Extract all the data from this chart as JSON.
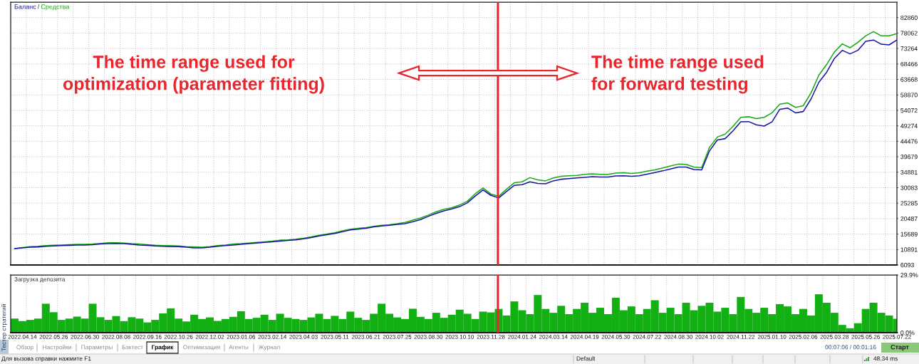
{
  "chart_data": [
    {
      "type": "line",
      "categories": [
        null,
        "2022.04.14",
        null,
        null,
        null,
        "2022.05.26",
        null,
        null,
        null,
        "2022.06.30",
        null,
        null,
        null,
        "2022.08.08",
        null,
        null,
        null,
        "2022.09.16",
        null,
        null,
        null,
        "2022.10.26",
        null,
        null,
        null,
        "2022.12.02",
        null,
        null,
        null,
        "2023.01.06",
        null,
        null,
        null,
        "2023.02.14",
        null,
        null,
        null,
        "2023.04.03",
        null,
        null,
        null,
        "2023.05.11",
        null,
        null,
        null,
        "2023.06.21",
        null,
        null,
        null,
        "2023.07.25",
        null,
        null,
        null,
        "2023.08.30",
        null,
        null,
        null,
        "2023.10.10",
        null,
        null,
        null,
        "2023.11.28",
        null,
        null,
        null,
        "2024.01.24",
        null,
        null,
        null,
        "2024.03.14",
        null,
        null,
        null,
        "2024.04.19",
        null,
        null,
        null,
        "2024.05.30",
        null,
        null,
        null,
        "2024.07.22",
        null,
        null,
        null,
        "2024.08.30",
        null,
        null,
        null,
        "2024.10.02",
        null,
        null,
        null,
        "2024.11.22",
        null,
        null,
        null,
        "2025.01.10",
        null,
        null,
        null,
        "2025.02.06",
        null,
        null,
        null,
        "2025.03.28",
        null,
        null,
        null,
        "2025.05.26",
        null,
        null,
        null,
        "2025.07.22"
      ],
      "series": [
        {
          "name": "Баланс",
          "color": "#1414a0",
          "values": [
            11200,
            11400,
            11600,
            11700,
            11900,
            12000,
            12100,
            12200,
            12300,
            12300,
            12400,
            12600,
            12700,
            12800,
            12700,
            12500,
            12300,
            12200,
            12000,
            11900,
            11800,
            11800,
            11600,
            11400,
            11400,
            11600,
            11900,
            12100,
            12300,
            12500,
            12700,
            12900,
            13100,
            13300,
            13500,
            13700,
            13900,
            14200,
            14600,
            15100,
            15500,
            15900,
            16400,
            17000,
            17200,
            17500,
            17900,
            18200,
            18400,
            18700,
            18900,
            19500,
            20200,
            21200,
            22100,
            22900,
            23500,
            24200,
            25400,
            27500,
            29400,
            27700,
            26900,
            28900,
            30800,
            31000,
            31900,
            31400,
            31300,
            32200,
            32700,
            32900,
            33100,
            33300,
            33500,
            33400,
            33400,
            33700,
            33800,
            33600,
            33800,
            34300,
            34800,
            35300,
            35900,
            36500,
            36500,
            35700,
            35600,
            41500,
            44900,
            45300,
            47700,
            50500,
            50600,
            49600,
            49200,
            50500,
            54400,
            54800,
            53300,
            53700,
            57600,
            62800,
            65900,
            70200,
            72700,
            71600,
            72700,
            75500,
            75900,
            74600,
            74400,
            75900
          ]
        },
        {
          "name": "Средства",
          "color": "#18a818",
          "values": [
            11200,
            11500,
            11800,
            11900,
            12100,
            12200,
            12300,
            12400,
            12500,
            12500,
            12600,
            12800,
            13000,
            13000,
            12900,
            12700,
            12600,
            12400,
            12200,
            12100,
            12100,
            12000,
            11800,
            11700,
            11600,
            11800,
            12100,
            12300,
            12600,
            12700,
            12900,
            13100,
            13300,
            13500,
            13800,
            13900,
            14100,
            14400,
            14800,
            15300,
            15700,
            16100,
            16700,
            17200,
            17500,
            17700,
            18100,
            18400,
            18600,
            18900,
            19300,
            20000,
            20700,
            21600,
            22600,
            23400,
            23900,
            24700,
            25900,
            28200,
            30000,
            28100,
            27400,
            29600,
            31600,
            31900,
            33200,
            32500,
            32200,
            33100,
            33600,
            33800,
            33900,
            34200,
            34400,
            34200,
            34200,
            34600,
            34700,
            34500,
            34700,
            35200,
            35600,
            36200,
            36800,
            37400,
            37300,
            36500,
            36300,
            42600,
            45800,
            46700,
            49100,
            51900,
            52100,
            51500,
            51900,
            53300,
            56000,
            56400,
            55000,
            55500,
            59500,
            65000,
            68300,
            72200,
            74700,
            73500,
            75200,
            77200,
            78500,
            77200,
            77200,
            77900
          ]
        }
      ],
      "ylim": [
        6093,
        87658
      ],
      "yticks": [
        6093,
        10891,
        15689,
        20487,
        25285,
        30083,
        34881,
        39679,
        44476,
        49274,
        54072,
        58870,
        63668,
        68466,
        73264,
        78062,
        82860
      ],
      "tick_labels": "y",
      "grid": true,
      "legend": "top left",
      "annotations": [
        "The time range used for\noptimization (parameter fitting)",
        "The time range used\nfor forward testing",
        "/"
      ]
    },
    {
      "type": "bar",
      "title": "Загрузка депозита",
      "categories": [
        null,
        "2022.04.14",
        null,
        null,
        null,
        "2022.05.26",
        null,
        null,
        null,
        "2022.06.30",
        null,
        null,
        null,
        "2022.08.08",
        null,
        null,
        null,
        "2022.09.16",
        null,
        null,
        null,
        "2022.10.26",
        null,
        null,
        null,
        "2022.12.02",
        null,
        null,
        null,
        "2023.01.06",
        null,
        null,
        null,
        "2023.02.14",
        null,
        null,
        null,
        "2023.04.03",
        null,
        null,
        null,
        "2023.05.11",
        null,
        null,
        null,
        "2023.06.21",
        null,
        null,
        null,
        "2023.07.25",
        null,
        null,
        null,
        "2023.08.30",
        null,
        null,
        null,
        "2023.10.10",
        null,
        null,
        null,
        "2023.11.28",
        null,
        null,
        null,
        "2024.01.24",
        null,
        null,
        null,
        "2024.03.14",
        null,
        null,
        null,
        "2024.04.19",
        null,
        null,
        null,
        "2024.05.30",
        null,
        null,
        null,
        "2024.07.22",
        null,
        null,
        null,
        "2024.08.30",
        null,
        null,
        null,
        "2024.10.02",
        null,
        null,
        null,
        "2024.11.22",
        null,
        null,
        null,
        "2025.01.10",
        null,
        null,
        null,
        "2025.02.06",
        null,
        null,
        null,
        "2025.03.28",
        null,
        null,
        null,
        "2025.05.26",
        null,
        null,
        null,
        "2025.07.22"
      ],
      "series": [
        {
          "color": "#12b012",
          "values": [
            7.3,
            6.0,
            6.6,
            7.3,
            15.0,
            10.6,
            6.6,
            7.3,
            8.3,
            7.3,
            15.0,
            8.0,
            6.6,
            8.6,
            6.0,
            8.0,
            7.3,
            5.3,
            6.6,
            10.0,
            12.6,
            7.3,
            5.8,
            9.3,
            7.1,
            7.9,
            6.1,
            7.1,
            8.2,
            11.1,
            7.1,
            7.7,
            9.3,
            6.6,
            9.8,
            7.7,
            7.1,
            6.6,
            7.9,
            9.8,
            7.1,
            8.7,
            7.1,
            10.9,
            7.7,
            6.6,
            9.8,
            15.0,
            9.8,
            7.9,
            7.1,
            12.4,
            8.2,
            7.1,
            10.3,
            7.7,
            9.3,
            11.9,
            9.8,
            7.1,
            10.9,
            10.5,
            12.3,
            8.9,
            16.2,
            11.6,
            9.6,
            19.5,
            12.3,
            10.3,
            13.9,
            9.6,
            12.3,
            15.5,
            10.3,
            12.9,
            9.6,
            18.1,
            11.6,
            13.6,
            9.6,
            12.3,
            16.8,
            10.3,
            12.9,
            9.6,
            15.5,
            11.6,
            13.9,
            15.5,
            10.9,
            12.9,
            9.6,
            18.5,
            12.3,
            10.3,
            12.9,
            9.6,
            14.8,
            13.6,
            9.6,
            12.3,
            8.9,
            19.9,
            15.5,
            10.3,
            4.0,
            2.3,
            4.9,
            12.3,
            15.5,
            10.3,
            8.9,
            7.2
          ]
        }
      ],
      "ylim": [
        0,
        29.9
      ],
      "yticks": [
        {
          "value": 0,
          "label": "0.0%"
        },
        {
          "value": 29.9,
          "label": "29.9%"
        }
      ],
      "grid": "x"
    },
    {
      "type": "other",
      "annotations": [
        "Тестер стратегий",
        "Обзор",
        "Настройки",
        "Параметры",
        "Бэктест",
        "График",
        "Оптимизация",
        "Агенты",
        "Журнал",
        "00:07:06 / 00:01:16",
        "Старт",
        "Для вызова справки нажмите F1",
        "Default",
        "48.34 ms"
      ]
    }
  ]
}
